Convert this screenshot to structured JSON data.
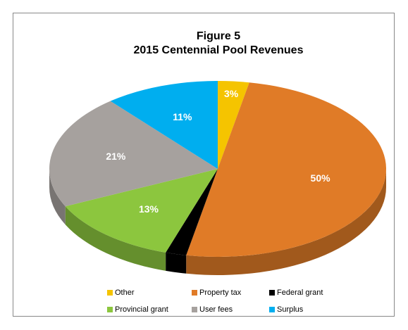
{
  "chart_data": {
    "type": "pie3d",
    "title": "Figure 5",
    "subtitle": "2015 Centennial Pool Revenues",
    "categories": [
      "Other",
      "Property tax",
      "Federal grant",
      "Provincial grant",
      "User fees",
      "Surplus"
    ],
    "values": [
      3,
      50,
      2,
      13,
      21,
      11
    ],
    "value_labels": [
      "3%",
      "50%",
      null,
      "13%",
      "21%",
      "11%"
    ],
    "colors": [
      "#f5c400",
      "#e07b27",
      "#000000",
      "#8cc63e",
      "#a6a19e",
      "#00aeef"
    ]
  }
}
